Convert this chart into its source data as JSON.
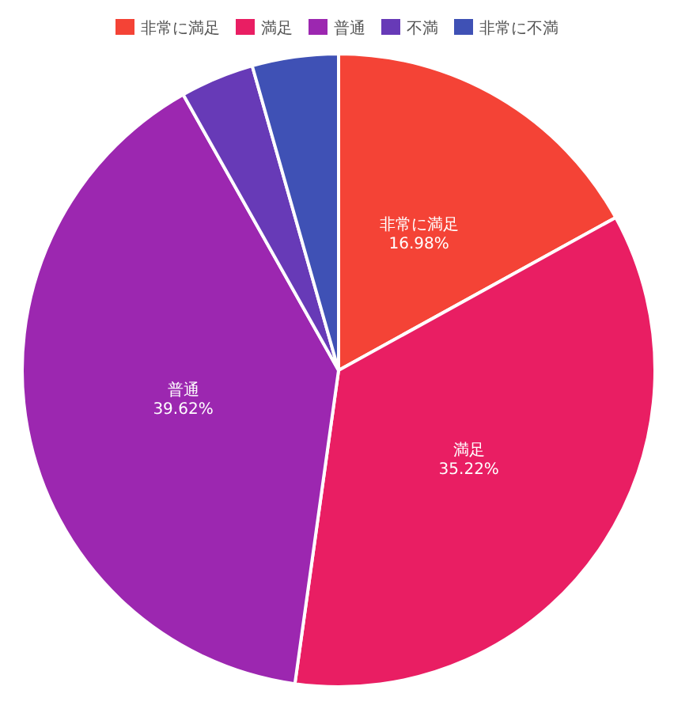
{
  "chart_data": {
    "type": "pie",
    "categories": [
      "非常に満足",
      "満足",
      "普通",
      "不満",
      "非常に不満"
    ],
    "values": [
      16.98,
      35.22,
      39.62,
      3.77,
      4.4
    ],
    "colors": [
      "#f44336",
      "#e91e63",
      "#9c27b0",
      "#673ab7",
      "#3f51b5"
    ],
    "value_labels": [
      "16.98%",
      "35.22%",
      "39.62%",
      null,
      null
    ],
    "legend": "top"
  }
}
